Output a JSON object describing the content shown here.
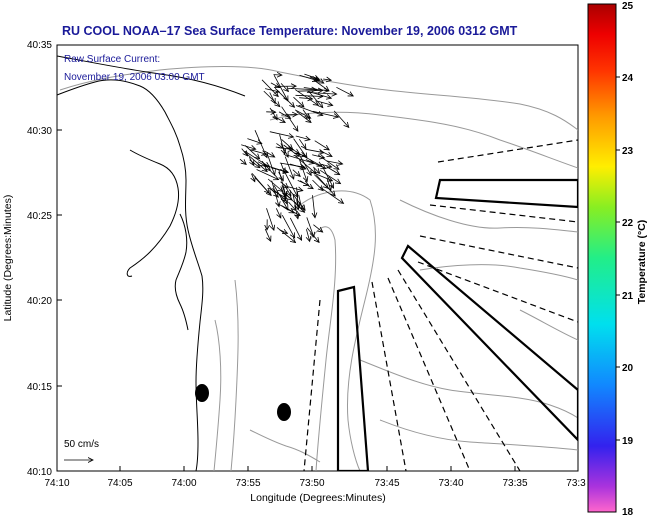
{
  "header": {
    "title": "RU COOL  NOAA–17  Sea Surface Temperature:  November 19, 2006 0312 GMT"
  },
  "annotation": {
    "line1": "Raw Surface Current:",
    "line2": "November 19, 2006 03:00 GMT",
    "scale_label": "50 cm/s"
  },
  "map": {
    "xlabel": "Longitude (Degrees:Minutes)",
    "ylabel": "Latitude (Degrees:Minutes)",
    "x_ticks": [
      "74:10",
      "74:05",
      "74:00",
      "73:55",
      "73:50",
      "73:45",
      "73:40",
      "73:35",
      "73:3"
    ],
    "y_ticks": [
      "40:35",
      "40:30",
      "40:25",
      "40:20",
      "40:15",
      "40:10"
    ]
  },
  "colorbar": {
    "label": "Temperature (°C)",
    "ticks": [
      "25",
      "24",
      "23",
      "22",
      "21",
      "20",
      "19",
      "18"
    ],
    "range": [
      18,
      25
    ],
    "colors": [
      "#ff66cc",
      "#aa33dd",
      "#3322ee",
      "#1188ff",
      "#00e0ee",
      "#22ee88",
      "#88ee22",
      "#ffee00",
      "#ff9900",
      "#ff3300",
      "#ee0000",
      "#aa0000"
    ]
  },
  "colors": {
    "title": "#1a1a99",
    "coast": "#000000",
    "contour": "#999999"
  }
}
